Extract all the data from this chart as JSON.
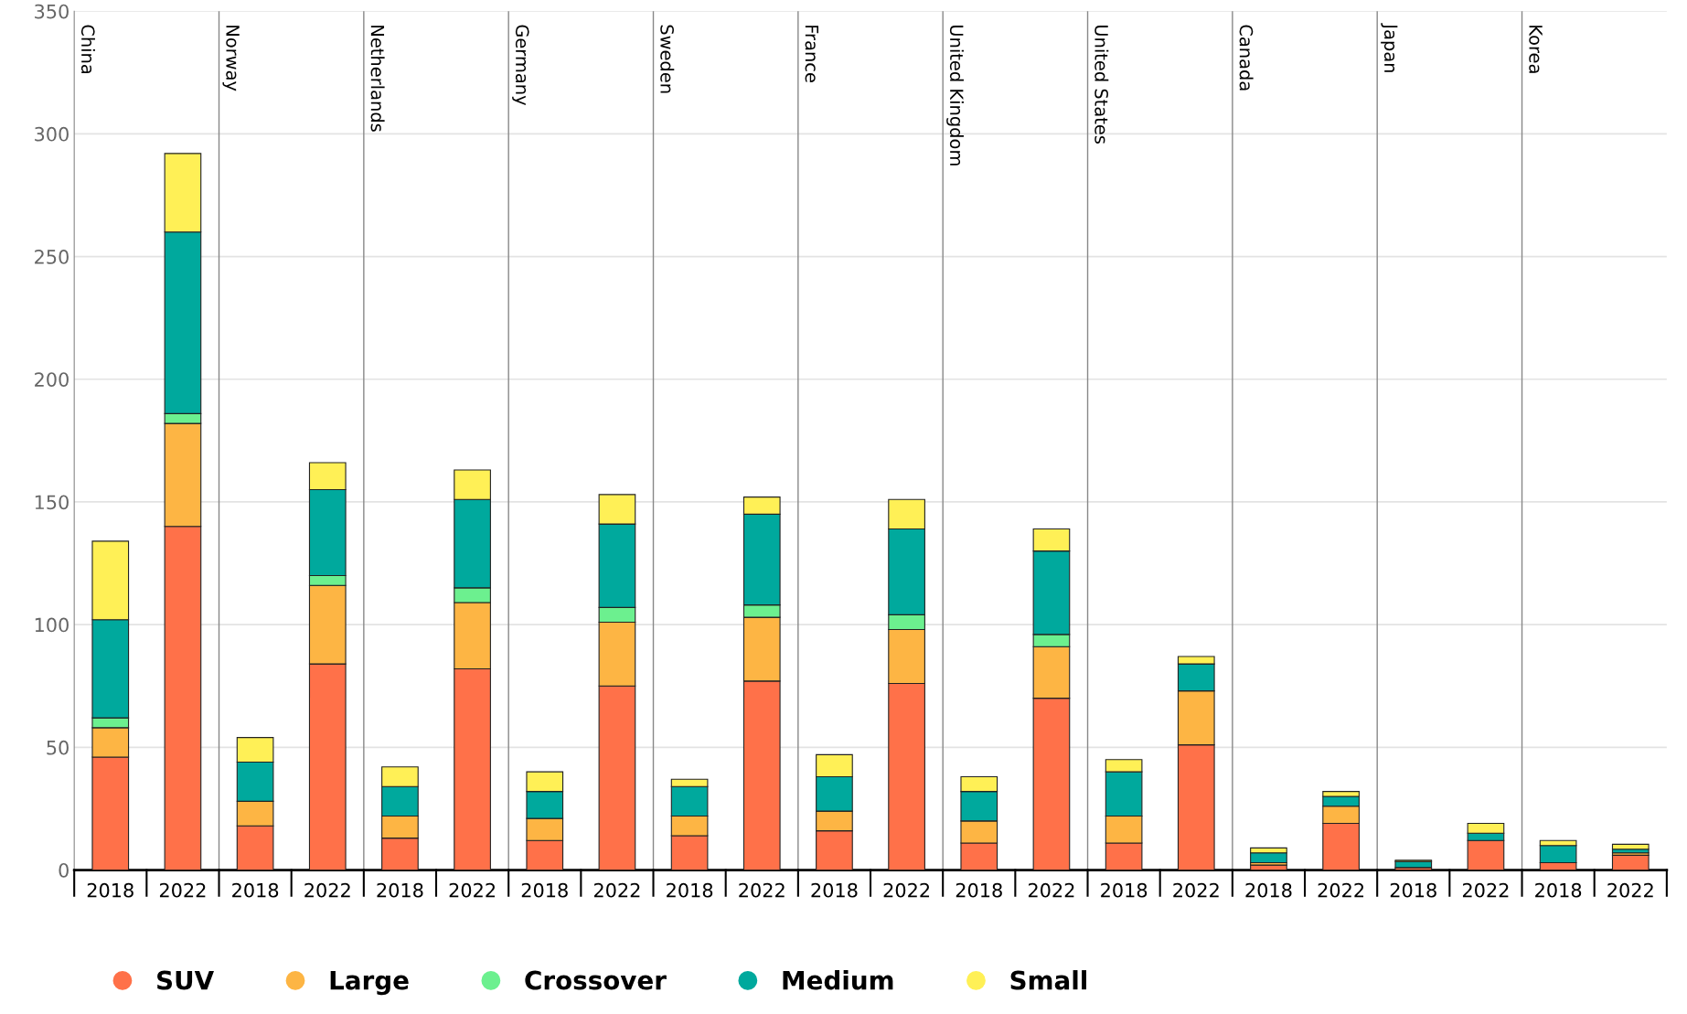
{
  "chart_data": {
    "type": "bar",
    "stacked": true,
    "categories": [
      "2018",
      "2022",
      "2018",
      "2022",
      "2018",
      "2022",
      "2018",
      "2022",
      "2018",
      "2022",
      "2018",
      "2022",
      "2018",
      "2022",
      "2018",
      "2022",
      "2018",
      "2022",
      "2018",
      "2022",
      "2018",
      "2022"
    ],
    "annotations": [
      "China",
      "Norway",
      "Netherlands",
      "Germany",
      "Sweden",
      "France",
      "United Kingdom",
      "United States",
      "Canada",
      "Japan",
      "Korea"
    ],
    "series": [
      {
        "name": "SUV",
        "color": "#ff7149",
        "values": [
          46,
          140,
          18,
          84,
          13,
          82,
          12,
          75,
          14,
          77,
          16,
          76,
          11,
          70,
          11,
          51,
          2,
          19,
          1,
          12,
          3,
          6
        ]
      },
      {
        "name": "Large",
        "color": "#fdb544",
        "values": [
          12,
          42,
          10,
          32,
          9,
          27,
          9,
          26,
          8,
          26,
          8,
          22,
          9,
          21,
          11,
          22,
          1,
          7,
          null,
          null,
          null,
          1
        ]
      },
      {
        "name": "Crossover",
        "color": "#6cf08f",
        "values": [
          4,
          4,
          null,
          4,
          null,
          6,
          null,
          6,
          null,
          5,
          null,
          6,
          null,
          5,
          null,
          null,
          null,
          null,
          null,
          null,
          null,
          null
        ]
      },
      {
        "name": "Medium",
        "color": "#00a99d",
        "values": [
          40,
          74,
          16,
          35,
          12,
          36,
          11,
          34,
          12,
          37,
          14,
          35,
          12,
          34,
          18,
          11,
          4,
          4,
          2.5,
          3,
          7,
          1.5
        ]
      },
      {
        "name": "Small",
        "color": "#fff056",
        "values": [
          32,
          32,
          10,
          11,
          8,
          12,
          8,
          12,
          3,
          7,
          9,
          12,
          6,
          9,
          5,
          3,
          2,
          2,
          0.5,
          4,
          2,
          2
        ]
      }
    ],
    "ylim": [
      0,
      350
    ],
    "yticks": [
      0,
      50,
      100,
      150,
      200,
      250,
      300,
      350
    ],
    "grid": "y",
    "legend": "bottom left"
  }
}
